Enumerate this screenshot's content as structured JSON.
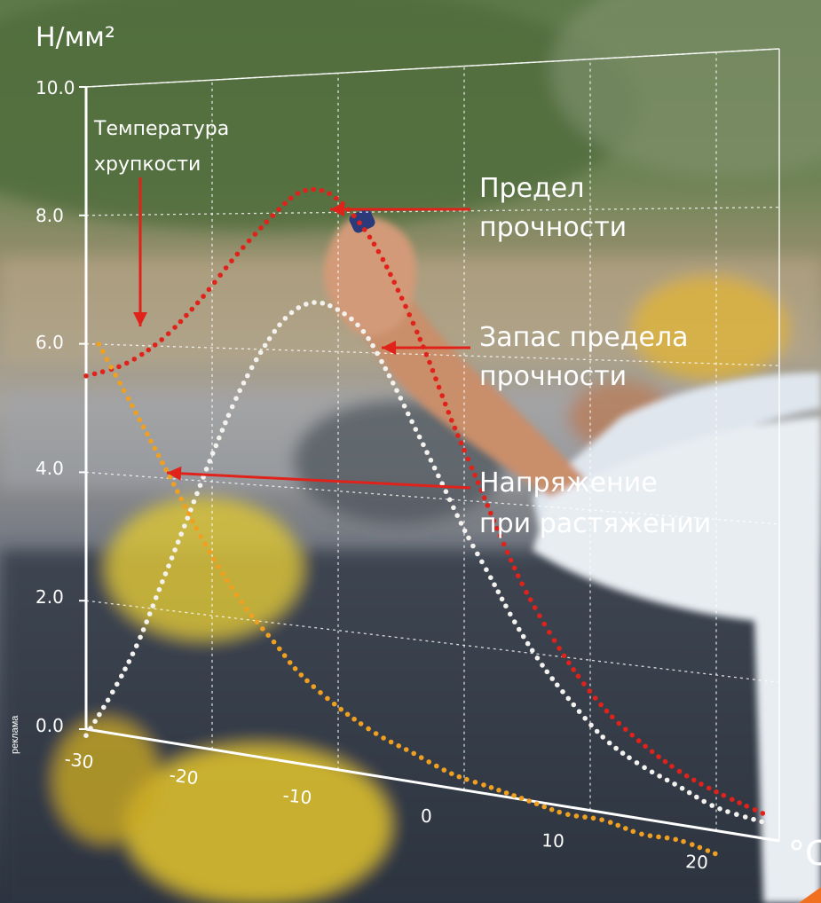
{
  "chart_data": {
    "type": "line",
    "ylabel": "Н/мм²",
    "xlabel": "°C",
    "yticks": [
      "10.0",
      "8.0",
      "6.0",
      "4.0",
      "2.0",
      "0.0"
    ],
    "xticks": [
      "-30",
      "-20",
      "-10",
      "0",
      "10",
      "20"
    ],
    "xlim": [
      -30,
      25
    ],
    "ylim": [
      0,
      10
    ],
    "grid": true,
    "series": [
      {
        "name": "Предел прочности",
        "color": "#e0221b",
        "x": [
          -30,
          -27,
          -24,
          -21,
          -18,
          -15,
          -13,
          -11,
          -9,
          -7,
          -5,
          -3,
          -1,
          1,
          3,
          5,
          8,
          11,
          14,
          17,
          20,
          24
        ],
        "y": [
          5.5,
          5.7,
          6.1,
          6.7,
          7.4,
          8.0,
          8.3,
          8.3,
          8.0,
          7.5,
          6.8,
          6.0,
          5.1,
          4.3,
          3.5,
          2.8,
          2.0,
          1.4,
          1.0,
          0.7,
          0.5,
          0.3
        ]
      },
      {
        "name": "Запас предела прочности",
        "color": "#f4f2ee",
        "x": [
          -30,
          -28,
          -26,
          -24,
          -22,
          -20,
          -18,
          -16,
          -14,
          -12,
          -10,
          -8,
          -6,
          -4,
          -2,
          0,
          2,
          4,
          6,
          8,
          11,
          14,
          17,
          20,
          24
        ],
        "y": [
          -0.1,
          0.6,
          1.4,
          2.4,
          3.4,
          4.4,
          5.3,
          6.0,
          6.5,
          6.7,
          6.6,
          6.3,
          5.7,
          5.0,
          4.3,
          3.6,
          3.0,
          2.4,
          1.9,
          1.5,
          1.0,
          0.7,
          0.5,
          0.3,
          0.2
        ]
      },
      {
        "name": "Напряжение при растяжении",
        "color": "#f0a020",
        "x": [
          -29,
          -27,
          -25,
          -23,
          -21,
          -19,
          -17,
          -15,
          -13,
          -10,
          -7,
          -4,
          -1,
          2,
          5,
          8,
          11,
          14,
          17,
          20
        ],
        "y": [
          6.0,
          5.3,
          4.6,
          3.9,
          3.2,
          2.6,
          2.1,
          1.7,
          1.3,
          0.9,
          0.6,
          0.4,
          0.2,
          0.1,
          0.0,
          -0.1,
          -0.1,
          -0.2,
          -0.2,
          -0.3
        ]
      }
    ],
    "annotations": {
      "brittle": [
        "Температура",
        "хрупкости"
      ],
      "strength": [
        "Предел",
        "прочности"
      ],
      "reserve": [
        "Запас предела",
        "прочности"
      ],
      "tension": [
        "Напряжение",
        "при растяжении"
      ]
    }
  },
  "side_label": "реклама",
  "colors": {
    "arrow": "#e0221b",
    "grid": "#ffffff"
  }
}
